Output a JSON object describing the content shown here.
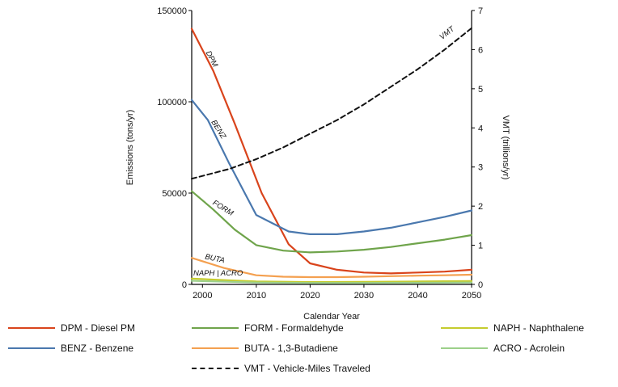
{
  "chart_data": {
    "type": "line",
    "xlabel": "Calendar Year",
    "ylabel": "Emissions (tons/yr)",
    "y2label": "VMT (trillions/yr)",
    "xlim": [
      1998,
      2050
    ],
    "ylim": [
      0,
      150000
    ],
    "y2lim": [
      0,
      7
    ],
    "xticks": [
      2000,
      2010,
      2020,
      2030,
      2040,
      2050
    ],
    "yticks": [
      0,
      50000,
      100000,
      150000
    ],
    "y2ticks": [
      0,
      1,
      2,
      3,
      4,
      5,
      6,
      7
    ],
    "grid": false,
    "legend_position": "bottom",
    "series": [
      {
        "key": "DPM",
        "name": "DPM - Diesel PM",
        "axis": "left",
        "color": "#d9441c",
        "dashed": false,
        "x": [
          1998,
          2002,
          2006,
          2011,
          2016,
          2020,
          2025,
          2030,
          2035,
          2040,
          2045,
          2050
        ],
        "y": [
          140000,
          117000,
          88000,
          50000,
          22000,
          11500,
          8000,
          6500,
          6000,
          6500,
          7000,
          8000
        ]
      },
      {
        "key": "BENZ",
        "name": "BENZ - Benzene",
        "axis": "left",
        "color": "#4a78ae",
        "dashed": false,
        "x": [
          1998,
          2001,
          2005,
          2010,
          2016,
          2020,
          2025,
          2030,
          2035,
          2040,
          2045,
          2050
        ],
        "y": [
          101000,
          90000,
          66000,
          38000,
          29000,
          27500,
          27500,
          29000,
          31000,
          34000,
          37000,
          40500
        ]
      },
      {
        "key": "FORM",
        "name": "FORM - Formaldehyde",
        "axis": "left",
        "color": "#6fa44b",
        "dashed": false,
        "x": [
          1998,
          2002,
          2006,
          2010,
          2015,
          2020,
          2025,
          2030,
          2035,
          2040,
          2045,
          2050
        ],
        "y": [
          51000,
          41000,
          30000,
          21500,
          18500,
          17500,
          18000,
          19000,
          20500,
          22500,
          24500,
          27000
        ]
      },
      {
        "key": "BUTA",
        "name": "BUTA - 1,3-Butadiene",
        "axis": "left",
        "color": "#f4a050",
        "dashed": false,
        "x": [
          1998,
          2004,
          2010,
          2015,
          2020,
          2025,
          2030,
          2035,
          2040,
          2045,
          2050
        ],
        "y": [
          14500,
          9000,
          5000,
          4200,
          4000,
          4000,
          4200,
          4500,
          4800,
          5000,
          5300
        ]
      },
      {
        "key": "NAPH",
        "name": "NAPH - Naphthalene",
        "axis": "left",
        "color": "#c5cc2e",
        "dashed": false,
        "x": [
          1998,
          2005,
          2010,
          2020,
          2030,
          2040,
          2050
        ],
        "y": [
          3200,
          2200,
          1600,
          1300,
          1400,
          1600,
          1800
        ]
      },
      {
        "key": "ACRO",
        "name": "ACRO - Acrolein",
        "axis": "left",
        "color": "#9cd08a",
        "dashed": false,
        "x": [
          1998,
          2005,
          2010,
          2020,
          2030,
          2040,
          2050
        ],
        "y": [
          2000,
          1400,
          1000,
          800,
          800,
          900,
          1000
        ]
      },
      {
        "key": "VMT",
        "name": "VMT - Vehicle-Miles Traveled",
        "axis": "right",
        "color": "#111111",
        "dashed": true,
        "x": [
          1998,
          2005,
          2010,
          2015,
          2020,
          2025,
          2030,
          2035,
          2040,
          2045,
          2050
        ],
        "y": [
          2.7,
          2.95,
          3.2,
          3.5,
          3.85,
          4.2,
          4.6,
          5.05,
          5.5,
          6.0,
          6.55
        ]
      }
    ],
    "annotations": [
      {
        "text": "DPM",
        "x": 2000.6,
        "y": 127000,
        "axis": "left",
        "angle": 62
      },
      {
        "text": "BENZ",
        "x": 2001.6,
        "y": 89000,
        "axis": "left",
        "angle": 58
      },
      {
        "text": "FORM",
        "x": 2001.8,
        "y": 44000,
        "axis": "left",
        "angle": 32
      },
      {
        "text": "BUTA",
        "x": 2000.4,
        "y": 14000,
        "axis": "left",
        "angle": 12
      },
      {
        "text": "NAPH | ACRO",
        "x": 1998.3,
        "y": 4800,
        "axis": "left",
        "angle": 0
      },
      {
        "text": "VMT",
        "x": 2044.5,
        "y": 6.25,
        "axis": "right",
        "angle": -38
      }
    ]
  }
}
